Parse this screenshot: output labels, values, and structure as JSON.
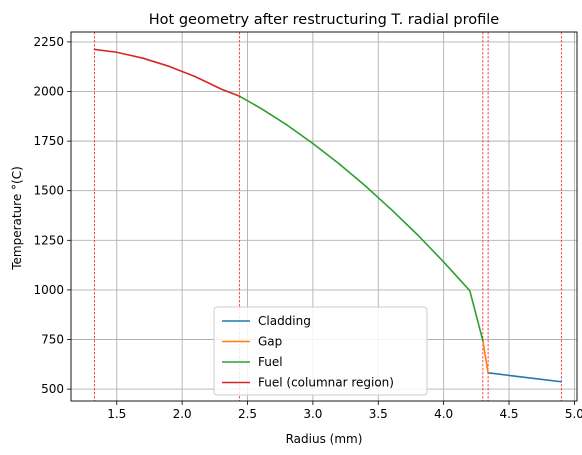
{
  "chart_data": {
    "type": "line",
    "title": "Hot geometry after restructuring T. radial profile",
    "xlabel": "Radius (mm)",
    "ylabel": "Temperature °(C)",
    "xlim": [
      1.15,
      5.02
    ],
    "ylim": [
      440,
      2300
    ],
    "xticks": [
      1.5,
      2.0,
      2.5,
      3.0,
      3.5,
      4.0,
      4.5,
      5.0
    ],
    "xtick_labels": [
      "1.5",
      "2.0",
      "2.5",
      "3.0",
      "3.5",
      "4.0",
      "4.5",
      "5.0"
    ],
    "yticks": [
      500,
      750,
      1000,
      1250,
      1500,
      1750,
      2000,
      2250
    ],
    "ytick_labels": [
      "500",
      "750",
      "1000",
      "1250",
      "1500",
      "1750",
      "2000",
      "2250"
    ],
    "grid": true,
    "legend_position": "bottom-center",
    "vertical_lines": [
      1.33,
      2.44,
      4.3,
      4.34,
      4.9
    ],
    "series": [
      {
        "name": "Cladding",
        "color": "#1f77b4",
        "x": [
          4.34,
          4.9
        ],
        "y": [
          582,
          537
        ]
      },
      {
        "name": "Gap",
        "color": "#ff7f0e",
        "x": [
          4.3,
          4.34
        ],
        "y": [
          744,
          582
        ]
      },
      {
        "name": "Fuel",
        "color": "#2ca02c",
        "x": [
          2.44,
          2.6,
          2.8,
          3.0,
          3.2,
          3.4,
          3.6,
          3.8,
          4.0,
          4.2,
          4.3
        ],
        "y": [
          1976,
          1916,
          1832,
          1738,
          1636,
          1525,
          1405,
          1278,
          1141,
          996,
          744
        ]
      },
      {
        "name": "Fuel (columnar region)",
        "color": "#d62728",
        "x": [
          1.33,
          1.5,
          1.7,
          1.9,
          2.1,
          2.3,
          2.44
        ],
        "y": [
          2212,
          2198,
          2168,
          2127,
          2075,
          2012,
          1976
        ]
      }
    ]
  }
}
